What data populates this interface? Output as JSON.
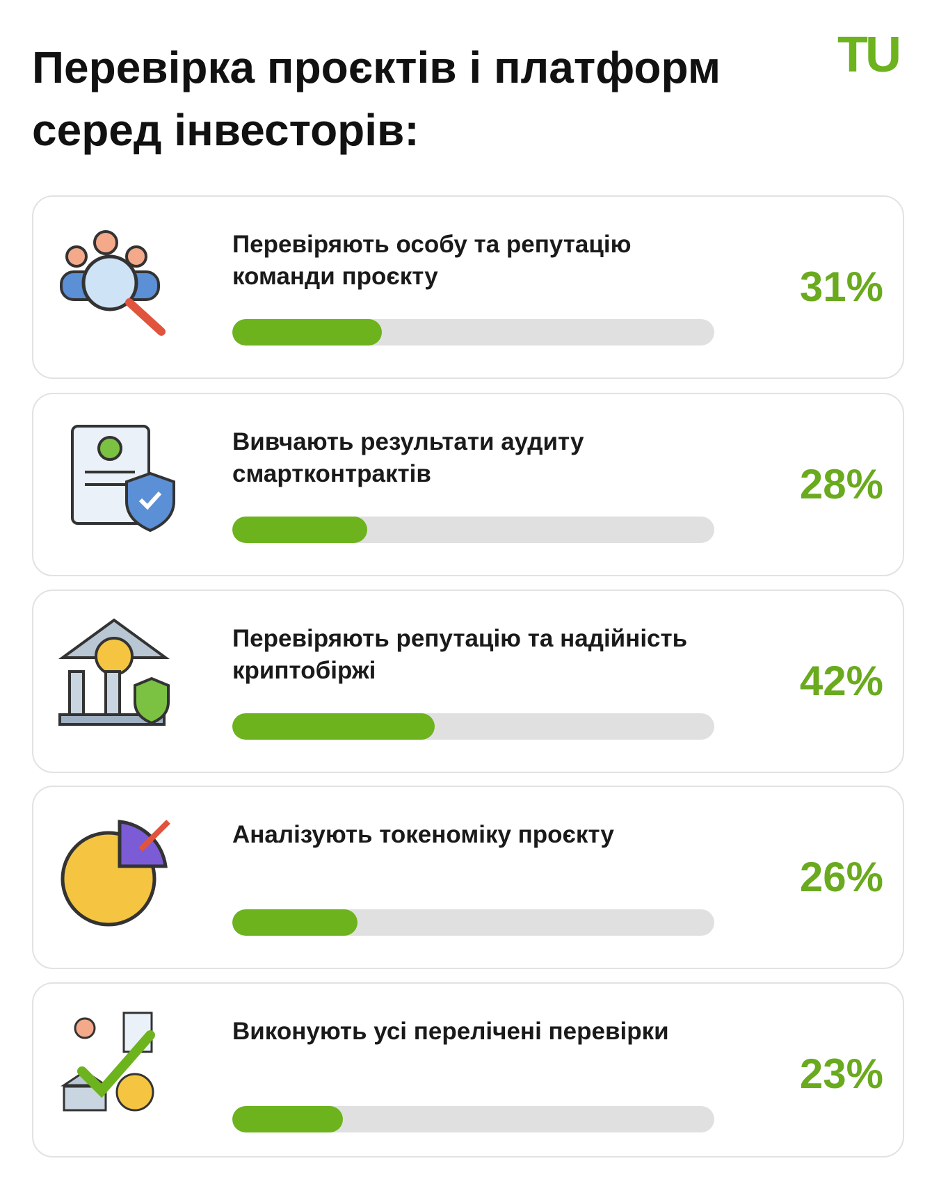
{
  "chart_data": {
    "type": "bar",
    "title": "Перевірка проєктів і платформ серед інвесторів:",
    "logo": "TU",
    "categories": [
      "Перевіряють особу та репутацію команди проєкту",
      "Вивчають результати аудиту смартконтрактів",
      "Перевіряють репутацію та надійність криптобіржі",
      "Аналізують токеноміку проєкту",
      "Виконують усі перелічені перевірки"
    ],
    "values": [
      31,
      28,
      42,
      26,
      23
    ],
    "value_labels": [
      "31%",
      "28%",
      "42%",
      "26%",
      "23%"
    ],
    "xlim": [
      0,
      100
    ],
    "color": "#6cb31d",
    "track_color": "#e0e0e0"
  }
}
